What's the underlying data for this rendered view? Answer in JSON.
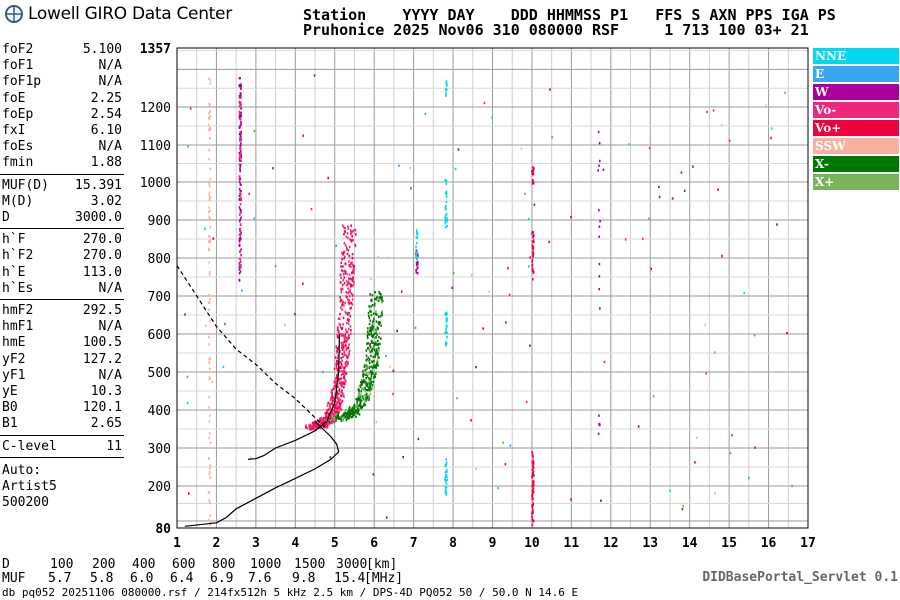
{
  "brand": {
    "logo_text": "Lowell GIRO Data Center"
  },
  "header": {
    "line1": "Station    YYYY DAY    DDD HHMMSS P1   FFS S AXN PPS IGA PS",
    "line2": "Pruhonice 2025 Nov06 310 080000 RSF     1 713 100 03+ 21"
  },
  "params": {
    "group1": [
      {
        "label": "foF2",
        "value": "5.100"
      },
      {
        "label": "foF1",
        "value": "N/A"
      },
      {
        "label": "foF1p",
        "value": "N/A"
      },
      {
        "label": "foE",
        "value": "2.25"
      },
      {
        "label": "foEp",
        "value": "2.54"
      },
      {
        "label": "fxI",
        "value": "6.10"
      },
      {
        "label": "foEs",
        "value": "N/A"
      },
      {
        "label": "fmin",
        "value": "1.88"
      }
    ],
    "group2": [
      {
        "label": "MUF(D)",
        "value": "15.391"
      },
      {
        "label": "M(D)",
        "value": "3.02"
      },
      {
        "label": "D",
        "value": "3000.0"
      }
    ],
    "group3": [
      {
        "label": "h`F",
        "value": "270.0"
      },
      {
        "label": "h`F2",
        "value": "270.0"
      },
      {
        "label": "h`E",
        "value": "113.0"
      },
      {
        "label": "h`Es",
        "value": "N/A"
      }
    ],
    "group4": [
      {
        "label": "hmF2",
        "value": "292.5"
      },
      {
        "label": "hmF1",
        "value": "N/A"
      },
      {
        "label": "hmE",
        "value": "100.5"
      },
      {
        "label": "yF2",
        "value": "127.2"
      },
      {
        "label": "yF1",
        "value": "N/A"
      },
      {
        "label": "yE",
        "value": "10.3"
      },
      {
        "label": "B0",
        "value": "120.1"
      },
      {
        "label": "B1",
        "value": "2.65"
      }
    ],
    "group5": [
      {
        "label": "C-level",
        "value": "11"
      }
    ],
    "auto": [
      "Auto:",
      "Artist5",
      "500200"
    ]
  },
  "legend": [
    {
      "label": "NNE",
      "color": "#00d8f0"
    },
    {
      "label": "E",
      "color": "#3aa6f0"
    },
    {
      "label": "W",
      "color": "#a8009c"
    },
    {
      "label": "Vo-",
      "color": "#f0287c"
    },
    {
      "label": "Vo+",
      "color": "#f0003c"
    },
    {
      "label": "SSW",
      "color": "#f8b0a0"
    },
    {
      "label": "X-",
      "color": "#007800"
    },
    {
      "label": "X+",
      "color": "#78b45c"
    }
  ],
  "muf_table": {
    "d_label": "D",
    "muf_label": "MUF",
    "d_values": [
      "100",
      "200",
      "400",
      "600",
      "800",
      "1000",
      "1500",
      "3000",
      "[km]"
    ],
    "muf_values": [
      "5.7",
      "5.8",
      "6.0",
      "6.4",
      "6.9",
      "7.6",
      "9.8",
      "15.4",
      "[MHz]"
    ]
  },
  "footer": {
    "text": "db pq052 20251106 080000.rsf / 214fx512h 5 kHz 2.5 km / DPS-4D PQ052 50 / 50.0 N 14.6 E",
    "servlet": "DIDBasePortal_Servlet 0.1"
  },
  "chart_data": {
    "type": "scatter",
    "xlim": [
      1,
      17
    ],
    "ylim": [
      80,
      1357
    ],
    "x_ticks": [
      1,
      2,
      3,
      4,
      5,
      6,
      7,
      8,
      9,
      10,
      11,
      12,
      13,
      14,
      15,
      16,
      17
    ],
    "y_ticks": [
      80,
      200,
      300,
      400,
      500,
      600,
      700,
      800,
      900,
      1000,
      1100,
      1200,
      1357
    ],
    "grid": true,
    "series": [
      {
        "name": "X-",
        "points": [
          [
            5.1,
            380
          ],
          [
            5.3,
            390
          ],
          [
            5.5,
            410
          ],
          [
            5.7,
            440
          ],
          [
            5.8,
            480
          ],
          [
            5.9,
            530
          ],
          [
            6.0,
            580
          ],
          [
            6.05,
            640
          ],
          [
            6.08,
            700
          ]
        ]
      },
      {
        "name": "Vo-",
        "points": [
          [
            4.4,
            350
          ],
          [
            4.6,
            365
          ],
          [
            4.8,
            385
          ],
          [
            4.95,
            420
          ],
          [
            5.0,
            470
          ],
          [
            5.05,
            540
          ],
          [
            5.1,
            620
          ],
          [
            5.15,
            700
          ],
          [
            5.2,
            800
          ],
          [
            5.25,
            900
          ]
        ]
      },
      {
        "name": "Vo+",
        "points": [
          [
            10.05,
            100
          ],
          [
            10.05,
            200
          ],
          [
            10.05,
            280
          ],
          [
            10.05,
            830
          ],
          [
            10.05,
            1010
          ]
        ]
      },
      {
        "name": "NNE",
        "points": [
          [
            7.8,
            180
          ],
          [
            7.8,
            240
          ],
          [
            7.8,
            580
          ],
          [
            7.8,
            640
          ],
          [
            7.8,
            930
          ],
          [
            7.8,
            990
          ]
        ]
      }
    ],
    "profile_curve": [
      [
        1.2,
        85
      ],
      [
        2.0,
        95
      ],
      [
        2.25,
        110
      ],
      [
        2.5,
        135
      ],
      [
        3.0,
        165
      ],
      [
        3.5,
        195
      ],
      [
        4.0,
        220
      ],
      [
        4.5,
        245
      ],
      [
        4.9,
        270
      ],
      [
        5.1,
        290
      ],
      [
        5.05,
        310
      ],
      [
        4.9,
        330
      ],
      [
        4.7,
        350
      ],
      [
        4.5,
        370
      ]
    ],
    "virtual_height_trace": [
      [
        2.8,
        270
      ],
      [
        3.0,
        272
      ],
      [
        3.2,
        280
      ],
      [
        3.5,
        300
      ],
      [
        4.0,
        320
      ],
      [
        4.5,
        345
      ],
      [
        4.8,
        370
      ],
      [
        5.0,
        420
      ],
      [
        5.1,
        500
      ],
      [
        5.12,
        600
      ]
    ],
    "dashed_curve": [
      [
        1.0,
        780
      ],
      [
        1.5,
        700
      ],
      [
        2.0,
        620
      ],
      [
        2.5,
        560
      ],
      [
        3.0,
        520
      ],
      [
        3.5,
        470
      ],
      [
        4.0,
        430
      ],
      [
        4.5,
        380
      ],
      [
        4.8,
        350
      ]
    ]
  }
}
